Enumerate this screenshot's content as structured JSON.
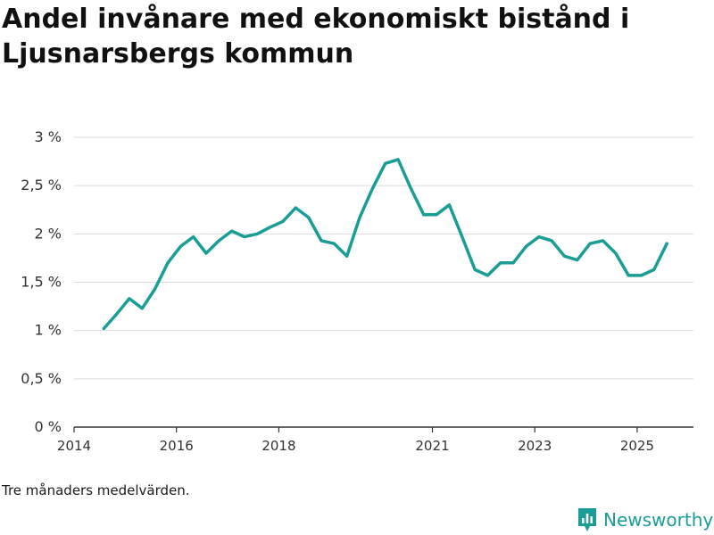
{
  "title": "Andel invånare med ekonomiskt bistånd i Ljusnarsbergs kommun",
  "footnote": "Tre månaders medelvärden.",
  "brand": {
    "name": "Newsworthy",
    "icon": "newsworthy-logo-icon",
    "color": "#1a9d95"
  },
  "chart_data": {
    "type": "line",
    "title": "Andel invånare med ekonomiskt bistånd i Ljusnarsbergs kommun",
    "xlabel": "",
    "ylabel": "",
    "ylim": [
      0,
      3
    ],
    "xlim": [
      2014.0,
      2026.1
    ],
    "yticks": [
      0,
      0.5,
      1,
      1.5,
      2,
      2.5,
      3
    ],
    "ytick_labels": [
      "0 %",
      "0,5 %",
      "1 %",
      "1,5 %",
      "2 %",
      "2,5 %",
      "3 %"
    ],
    "xticks": [
      2014,
      2016,
      2018,
      2021,
      2023,
      2025
    ],
    "xtick_labels": [
      "2014",
      "2016",
      "2018",
      "2021",
      "2023",
      "2025"
    ],
    "grid": true,
    "series": [
      {
        "name": "Andel invånare med ekonomiskt bistånd",
        "color": "#1a9d95",
        "x": [
          2014.58,
          2014.83,
          2015.08,
          2015.33,
          2015.58,
          2015.83,
          2016.08,
          2016.33,
          2016.58,
          2016.83,
          2017.08,
          2017.33,
          2017.58,
          2017.83,
          2018.08,
          2018.33,
          2018.58,
          2018.83,
          2019.08,
          2019.33,
          2019.58,
          2019.83,
          2020.08,
          2020.33,
          2020.58,
          2020.83,
          2021.08,
          2021.33,
          2021.58,
          2021.83,
          2022.08,
          2022.33,
          2022.58,
          2022.83,
          2023.08,
          2023.33,
          2023.58,
          2023.83,
          2024.08,
          2024.33,
          2024.58,
          2024.83,
          2025.08,
          2025.33,
          2025.58
        ],
        "values": [
          1.02,
          1.17,
          1.33,
          1.23,
          1.43,
          1.7,
          1.87,
          1.97,
          1.8,
          1.93,
          2.03,
          1.97,
          2.0,
          2.07,
          2.13,
          2.27,
          2.17,
          1.93,
          1.9,
          1.77,
          2.17,
          2.47,
          2.73,
          2.77,
          2.47,
          2.2,
          2.2,
          2.3,
          1.97,
          1.63,
          1.57,
          1.7,
          1.7,
          1.87,
          1.97,
          1.93,
          1.77,
          1.73,
          1.9,
          1.93,
          1.8,
          1.57,
          1.57,
          1.63,
          1.9
        ]
      }
    ]
  }
}
